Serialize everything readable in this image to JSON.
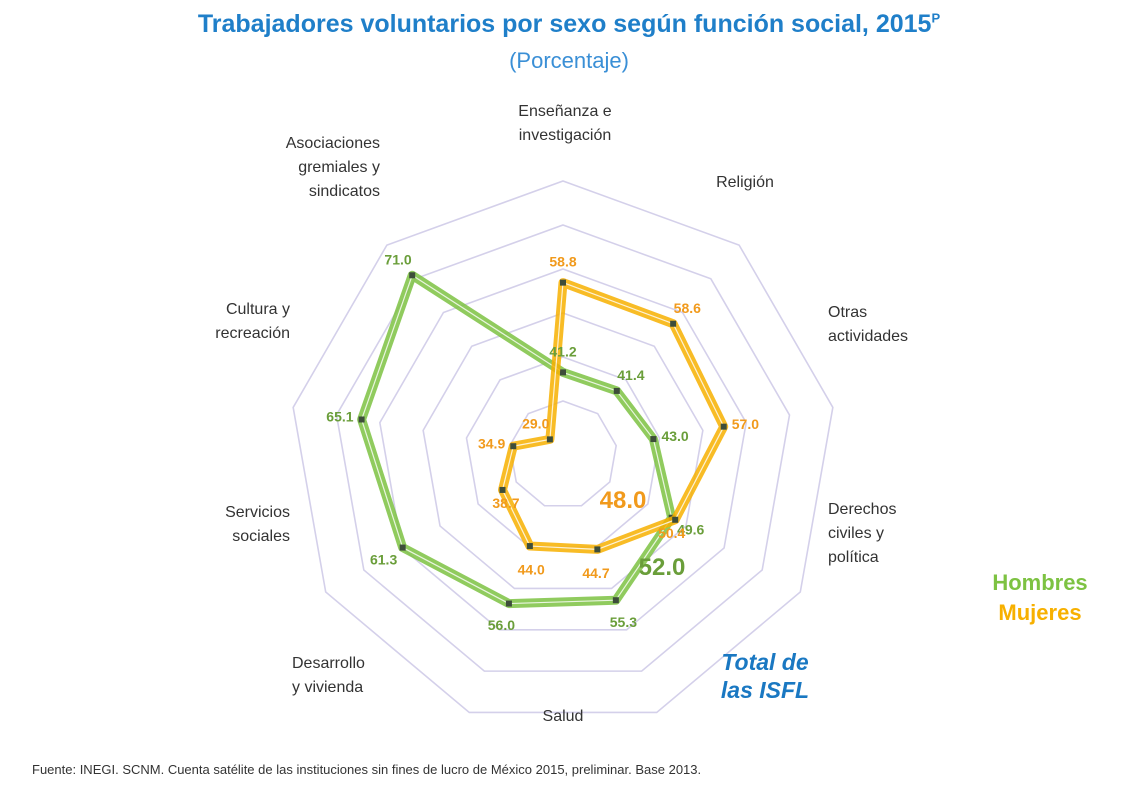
{
  "chart_data": {
    "type": "radar",
    "title": "Trabajadores voluntarios por sexo según función social, 2015",
    "title_superscript": "P",
    "subtitle": "(Porcentaje)",
    "categories": [
      "Enseñanza e investigación",
      "Religión",
      "Otras actividades",
      "Derechos civiles y política",
      "Salud",
      "Desarrollo y vivienda",
      "Servicios sociales",
      "Cultura y recreación",
      "Asociaciones gremiales y sindicatos"
    ],
    "category_label_lines": [
      [
        "Enseñanza e",
        "investigación"
      ],
      [
        "Religión"
      ],
      [
        "Otras",
        "actividades"
      ],
      [
        "Derechos",
        "civiles y",
        "política"
      ],
      [
        "Salud"
      ],
      [
        "Desarrollo",
        "y vivienda"
      ],
      [
        "Servicios",
        "sociales"
      ],
      [
        "Cultura y",
        "recreación"
      ],
      [
        "Asociaciones",
        "gremiales y",
        "sindicatos"
      ]
    ],
    "series": [
      {
        "name": "Hombres",
        "color": "#7dc242",
        "label_color": "#6a9e3a",
        "values": [
          41.2,
          41.4,
          43.0,
          49.6,
          55.3,
          56.0,
          61.3,
          65.1,
          71.0
        ],
        "labels": [
          "41.2",
          "41.4",
          "43.0",
          "49.6",
          "55.3",
          "56.0",
          "61.3",
          "65.1",
          "71.0"
        ]
      },
      {
        "name": "Mujeres",
        "color": "#f7b000",
        "label_color": "#f19a1c",
        "values": [
          58.8,
          58.6,
          57.0,
          50.4,
          44.7,
          44.0,
          38.7,
          34.9,
          29.0
        ],
        "labels": [
          "58.8",
          "58.6",
          "57.0",
          "50.4",
          "44.7",
          "44.0",
          "38.7",
          "34.9",
          "29.0"
        ]
      }
    ],
    "totals": {
      "label": [
        "Total de",
        "las ISFL"
      ],
      "label_color": "#1a78c2",
      "hombres": "52.0",
      "mujeres": "48.0"
    },
    "grid_rings": 6,
    "grid_color": "#d4d0ea",
    "legend_position": "right"
  },
  "legend": {
    "hombres": "Hombres",
    "mujeres": "Mujeres"
  },
  "source": "Fuente: INEGI. SCNM. Cuenta satélite de las instituciones sin fines de lucro de México 2015, preliminar. Base 2013."
}
